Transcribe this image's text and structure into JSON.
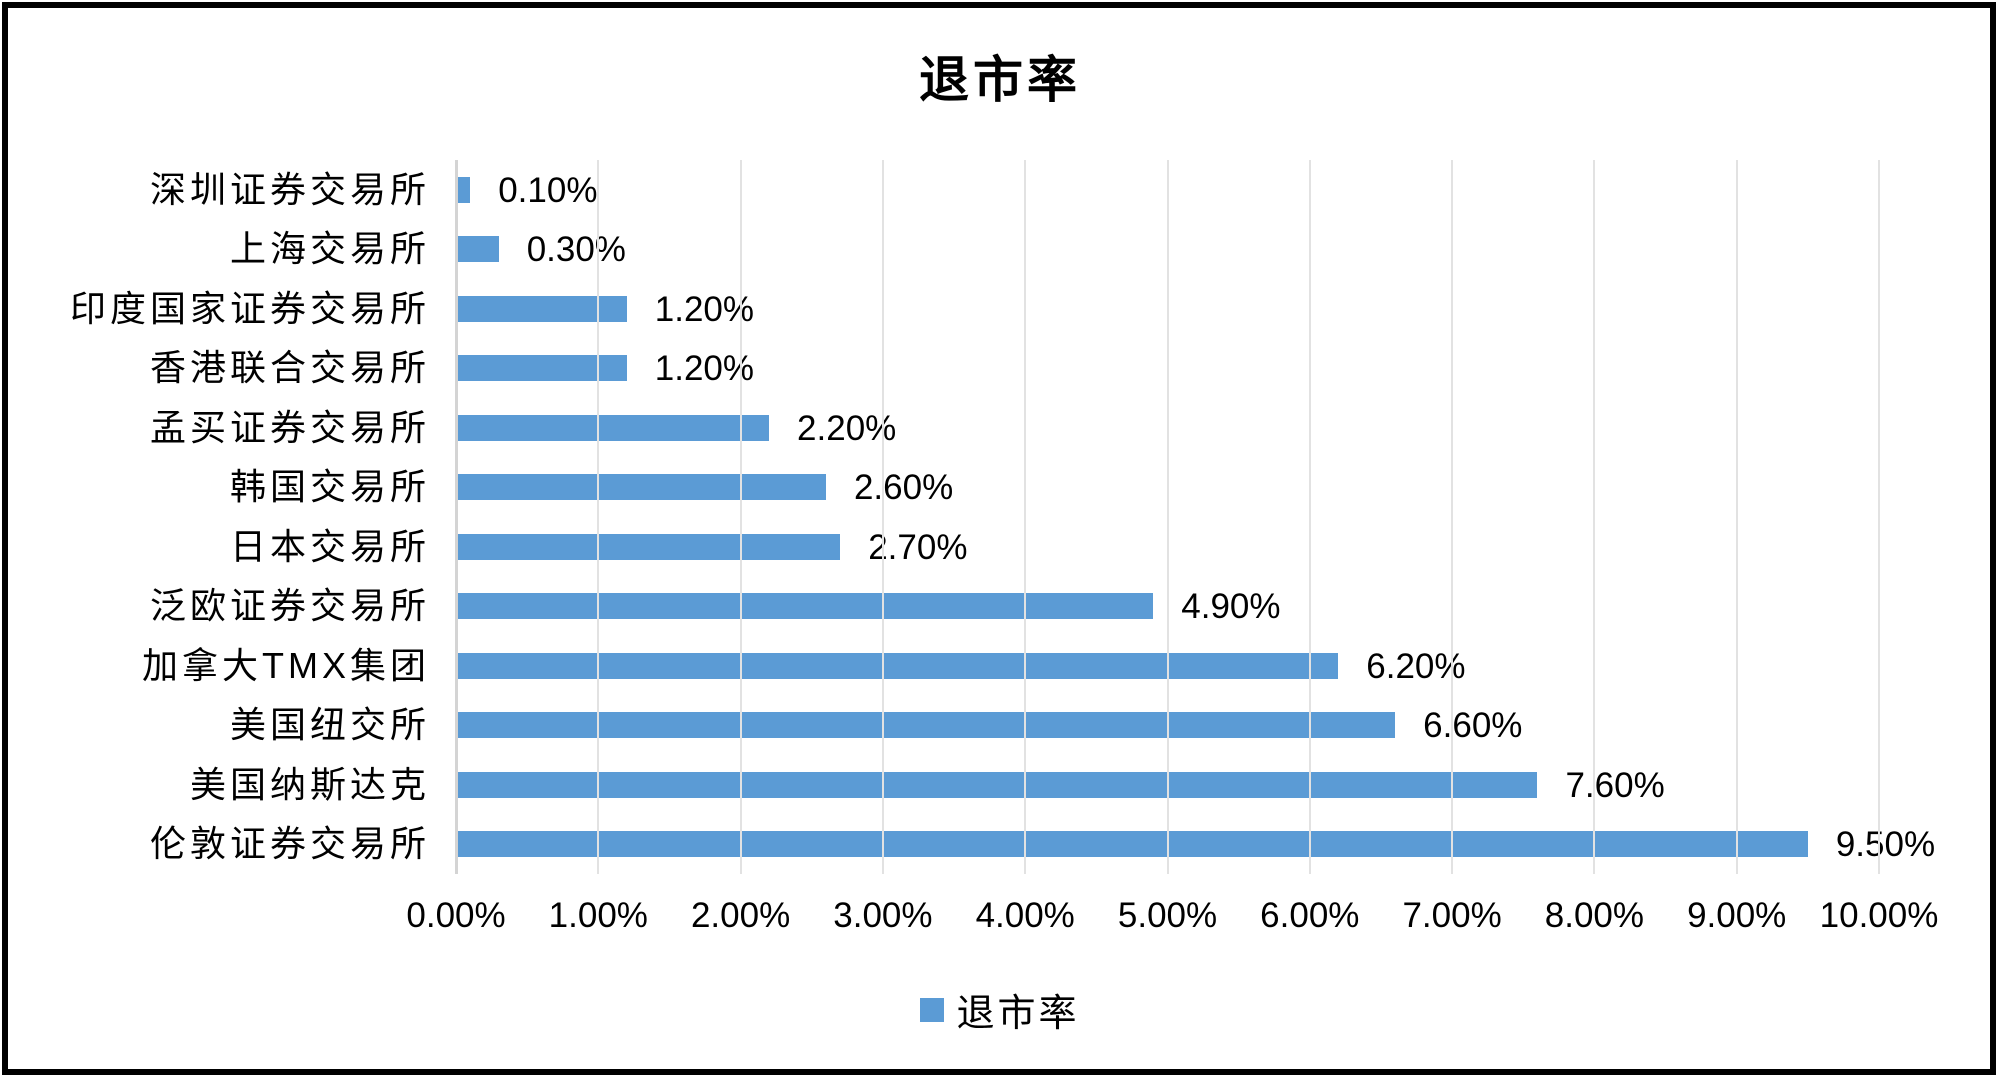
{
  "title": "退市率",
  "legend": {
    "label": "退市率"
  },
  "colors": {
    "bar": "#5b9bd5",
    "gridline": "#e2e2e2",
    "axis_line": "#d4d4d4",
    "text": "#000000",
    "border": "#000000",
    "background": "#ffffff"
  },
  "chart_data": {
    "type": "bar",
    "orientation": "horizontal",
    "title": "退市率",
    "series_name": "退市率",
    "categories": [
      "深圳证券交易所",
      "上海交易所",
      "印度国家证券交易所",
      "香港联合交易所",
      "孟买证券交易所",
      "韩国交易所",
      "日本交易所",
      "泛欧证券交易所",
      "加拿大TMX集团",
      "美国纽交所",
      "美国纳斯达克",
      "伦敦证券交易所"
    ],
    "values": [
      0.1,
      0.3,
      1.2,
      1.2,
      2.2,
      2.6,
      2.7,
      4.9,
      6.2,
      6.6,
      7.6,
      9.5
    ],
    "value_labels": [
      "0.10%",
      "0.30%",
      "1.20%",
      "1.20%",
      "2.20%",
      "2.60%",
      "2.70%",
      "4.90%",
      "6.20%",
      "6.60%",
      "7.60%",
      "9.50%"
    ],
    "xlabel": "",
    "ylabel": "",
    "xlim": [
      0,
      10
    ],
    "x_tick_values": [
      0,
      1,
      2,
      3,
      4,
      5,
      6,
      7,
      8,
      9,
      10
    ],
    "x_tick_labels": [
      "0.00%",
      "1.00%",
      "2.00%",
      "3.00%",
      "4.00%",
      "5.00%",
      "6.00%",
      "7.00%",
      "8.00%",
      "9.00%",
      "10.00%"
    ],
    "grid": true,
    "legend_position": "bottom"
  }
}
